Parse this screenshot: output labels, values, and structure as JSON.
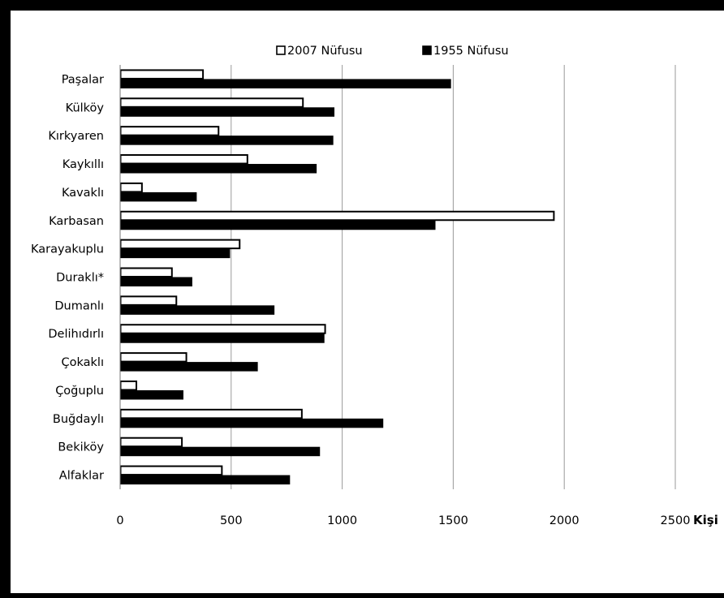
{
  "chart_data": {
    "type": "bar",
    "orientation": "horizontal",
    "categories": [
      "Paşalar",
      "Külköy",
      "Kırkyaren",
      "Kaykıllı",
      "Kavaklı",
      "Karbasan",
      "Karayakuplu",
      "Duraklı*",
      "Dumanlı",
      "Delihıdırlı",
      "Çokaklı",
      "Çoğuplu",
      "Buğdaylı",
      "Bekiköy",
      "Alfaklar"
    ],
    "series": [
      {
        "name": "2007 Nüfusu",
        "color": "#ffffff",
        "values": [
          375,
          825,
          445,
          575,
          100,
          1955,
          540,
          235,
          255,
          925,
          300,
          75,
          820,
          280,
          460
        ]
      },
      {
        "name": "1955 Nüfusu",
        "color": "#000000",
        "values": [
          1490,
          965,
          960,
          885,
          345,
          1420,
          495,
          325,
          695,
          920,
          620,
          285,
          1185,
          900,
          765
        ]
      }
    ],
    "xlim": [
      0,
      2500
    ],
    "xticks": [
      "0",
      "500",
      "1000",
      "1500",
      "2000",
      "2500"
    ],
    "xunit": "Kişi",
    "legend_position": "top",
    "grid": "vertical"
  }
}
